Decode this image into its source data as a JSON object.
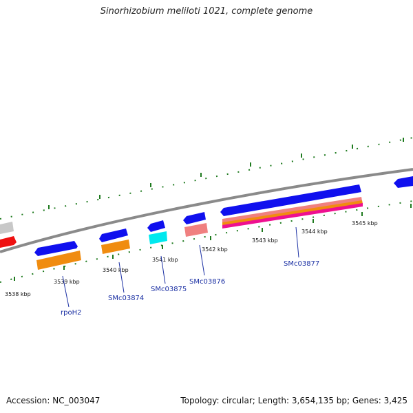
{
  "title": "Sinorhizobium meliloti 1021, complete genome",
  "footer": {
    "accession": "Accession: NC_003047",
    "summary": "Topology: circular; Length: 3,654,135 bp; Genes: 3,425"
  },
  "colors": {
    "backbone": "#8a8a8a",
    "tick": "#1e7a1e",
    "cds": "#1010ee",
    "label": "#1a2fa3"
  },
  "ruler_labels": [
    "3538 kbp",
    "3539 kbp",
    "3540 kbp",
    "3541 kbp",
    "3542 kbp",
    "3543 kbp",
    "3544 kbp",
    "3545 kbp"
  ],
  "gene_labels": [
    "rpoH2",
    "SMc03874",
    "SMc03875",
    "SMc03876",
    "SMc03877"
  ]
}
